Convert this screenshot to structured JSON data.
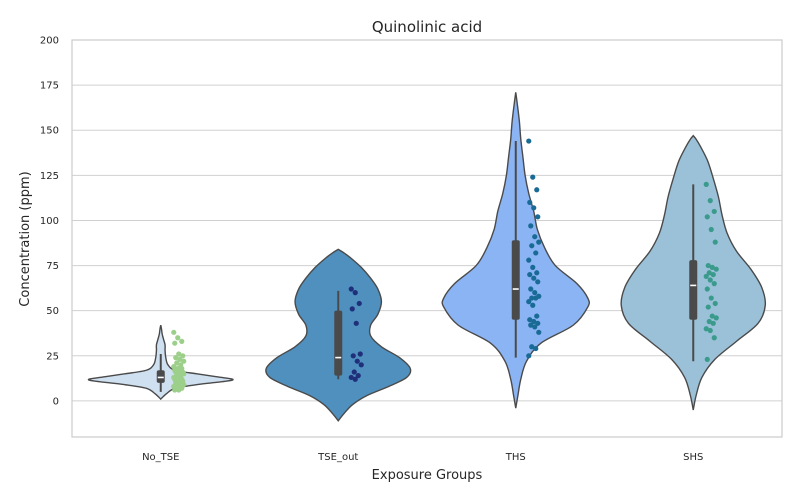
{
  "chart_data": {
    "type": "violin",
    "title": "Quinolinic acid",
    "xlabel": "Exposure Groups",
    "ylabel": "Concentration (ppm)",
    "ylim": [
      -20,
      200
    ],
    "yticks": [
      0,
      25,
      50,
      75,
      100,
      125,
      150,
      175,
      200
    ],
    "grid": true,
    "categories": [
      "No_TSE",
      "TSE_out",
      "THS",
      "SHS"
    ],
    "groups": [
      {
        "name": "No_TSE",
        "violin_color": "#cfe0f1",
        "point_color": "#9ccf8a",
        "box": {
          "q1": 10,
          "median": 13,
          "q3": 17,
          "whisker_low": 5,
          "whisker_high": 26
        },
        "density_profile": [
          [
            1,
            0.0
          ],
          [
            4,
            0.08
          ],
          [
            7,
            0.2
          ],
          [
            9,
            0.5
          ],
          [
            11,
            0.92
          ],
          [
            12,
            1.0
          ],
          [
            13,
            0.85
          ],
          [
            15,
            0.5
          ],
          [
            17,
            0.2
          ],
          [
            20,
            0.1
          ],
          [
            24,
            0.07
          ],
          [
            28,
            0.06
          ],
          [
            31,
            0.06
          ],
          [
            34,
            0.04
          ],
          [
            37,
            0.02
          ],
          [
            40,
            0.01
          ],
          [
            42,
            0.0
          ]
        ],
        "points": [
          38,
          35,
          33,
          32,
          26,
          25,
          24,
          23,
          22,
          21,
          20,
          19,
          18,
          18,
          17,
          17,
          16,
          16,
          15,
          15,
          14,
          14,
          13,
          13,
          12,
          12,
          11,
          11,
          10,
          10,
          9,
          9,
          8,
          8,
          7,
          7,
          6,
          6
        ]
      },
      {
        "name": "TSE_out",
        "violin_color": "#4f90be",
        "point_color": "#1f2f7a",
        "box": {
          "q1": 14,
          "median": 24,
          "q3": 50,
          "whisker_low": 12,
          "whisker_high": 61
        },
        "density_profile": [
          [
            -11,
            0.0
          ],
          [
            -7,
            0.08
          ],
          [
            -2,
            0.2
          ],
          [
            3,
            0.4
          ],
          [
            8,
            0.7
          ],
          [
            13,
            0.95
          ],
          [
            18,
            1.0
          ],
          [
            24,
            0.85
          ],
          [
            30,
            0.6
          ],
          [
            36,
            0.45
          ],
          [
            42,
            0.45
          ],
          [
            48,
            0.55
          ],
          [
            55,
            0.6
          ],
          [
            62,
            0.55
          ],
          [
            68,
            0.45
          ],
          [
            74,
            0.32
          ],
          [
            79,
            0.18
          ],
          [
            82,
            0.08
          ],
          [
            84,
            0.0
          ]
        ],
        "points": [
          62,
          60,
          54,
          51,
          43,
          26,
          25,
          22,
          20,
          16,
          14,
          13,
          12
        ]
      },
      {
        "name": "THS",
        "violin_color": "#8ab4f3",
        "point_color": "#1a6a96",
        "box": {
          "q1": 45,
          "median": 62,
          "q3": 89,
          "whisker_low": 24,
          "whisker_high": 144
        },
        "density_profile": [
          [
            -4,
            0.0
          ],
          [
            3,
            0.03
          ],
          [
            12,
            0.07
          ],
          [
            22,
            0.15
          ],
          [
            32,
            0.35
          ],
          [
            42,
            0.8
          ],
          [
            52,
            1.0
          ],
          [
            57,
            1.0
          ],
          [
            65,
            0.85
          ],
          [
            75,
            0.55
          ],
          [
            85,
            0.4
          ],
          [
            95,
            0.3
          ],
          [
            105,
            0.25
          ],
          [
            115,
            0.18
          ],
          [
            125,
            0.13
          ],
          [
            135,
            0.1
          ],
          [
            145,
            0.07
          ],
          [
            155,
            0.05
          ],
          [
            165,
            0.02
          ],
          [
            171,
            0.0
          ]
        ],
        "points": [
          144,
          124,
          117,
          110,
          107,
          102,
          97,
          91,
          88,
          86,
          82,
          78,
          74,
          71,
          70,
          68,
          66,
          62,
          60,
          58,
          57,
          57,
          55,
          53,
          47,
          45,
          44,
          43,
          42,
          41,
          38,
          30,
          29,
          25
        ]
      },
      {
        "name": "SHS",
        "violin_color": "#9bc1d8",
        "point_color": "#3a9a8c",
        "box": {
          "q1": 45,
          "median": 64,
          "q3": 78,
          "whisker_low": 22,
          "whisker_high": 120
        },
        "density_profile": [
          [
            -5,
            0.0
          ],
          [
            3,
            0.04
          ],
          [
            13,
            0.12
          ],
          [
            23,
            0.3
          ],
          [
            33,
            0.6
          ],
          [
            43,
            0.9
          ],
          [
            53,
            1.0
          ],
          [
            63,
            0.95
          ],
          [
            73,
            0.8
          ],
          [
            83,
            0.6
          ],
          [
            93,
            0.47
          ],
          [
            103,
            0.4
          ],
          [
            113,
            0.35
          ],
          [
            123,
            0.28
          ],
          [
            133,
            0.2
          ],
          [
            141,
            0.1
          ],
          [
            145,
            0.04
          ],
          [
            147,
            0.0
          ]
        ],
        "points": [
          120,
          111,
          105,
          102,
          95,
          88,
          75,
          74,
          73,
          71,
          70,
          69,
          67,
          65,
          62,
          57,
          54,
          52,
          47,
          46,
          44,
          43,
          40,
          39,
          35,
          23
        ]
      }
    ]
  },
  "style": {
    "grid_color": "#d0d0d0",
    "frame_color": "#cccccc",
    "violin_edge": "#4a4a4a",
    "box_color": "#4a4a4a",
    "median_color": "#ffffff"
  }
}
